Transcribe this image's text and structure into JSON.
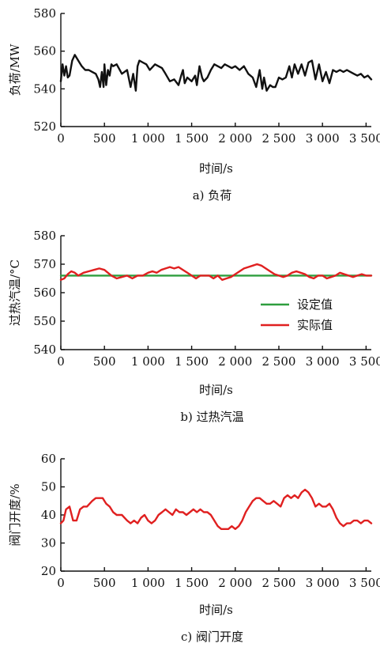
{
  "chart_data": [
    {
      "type": "line",
      "caption": "a) 负荷",
      "xlabel": "时间/s",
      "ylabel": "负荷/MW",
      "xlim": [
        0,
        3560
      ],
      "ylim": [
        520,
        580
      ],
      "xticks": [
        0,
        500,
        1000,
        1500,
        2000,
        2500,
        3000,
        3500
      ],
      "xtick_labels": [
        "0",
        "500",
        "1 000",
        "1 500",
        "2 000",
        "2 500",
        "3 000",
        "3 500"
      ],
      "yticks": [
        520,
        540,
        560,
        580
      ],
      "ytick_labels": [
        "520",
        "540",
        "560",
        "580"
      ],
      "series": [
        {
          "color": "#111111",
          "x": [
            0,
            20,
            40,
            60,
            80,
            100,
            130,
            160,
            200,
            240,
            280,
            320,
            360,
            400,
            430,
            450,
            470,
            490,
            500,
            520,
            540,
            560,
            580,
            600,
            640,
            700,
            760,
            800,
            830,
            860,
            880,
            900,
            940,
            980,
            1020,
            1080,
            1120,
            1160,
            1200,
            1250,
            1300,
            1350,
            1380,
            1400,
            1420,
            1450,
            1500,
            1540,
            1560,
            1590,
            1620,
            1640,
            1680,
            1720,
            1760,
            1800,
            1840,
            1880,
            1920,
            1960,
            2000,
            2050,
            2100,
            2150,
            2200,
            2240,
            2280,
            2310,
            2330,
            2360,
            2400,
            2430,
            2460,
            2500,
            2540,
            2580,
            2620,
            2650,
            2680,
            2720,
            2760,
            2800,
            2840,
            2880,
            2920,
            2960,
            3000,
            3040,
            3080,
            3120,
            3160,
            3200,
            3240,
            3280,
            3320,
            3360,
            3400,
            3440,
            3480,
            3520,
            3560
          ],
          "y": [
            544,
            553,
            547,
            552,
            546,
            547,
            555,
            558,
            555,
            552,
            550,
            550,
            549,
            548,
            545,
            541,
            549,
            541,
            553,
            542,
            550,
            547,
            553,
            552,
            553,
            548,
            550,
            541,
            548,
            539,
            552,
            555,
            554,
            553,
            550,
            553,
            552,
            551,
            548,
            544,
            545,
            542,
            547,
            550,
            543,
            546,
            544,
            547,
            542,
            552,
            546,
            544,
            546,
            550,
            553,
            552,
            551,
            553,
            552,
            551,
            552,
            550,
            552,
            548,
            546,
            541,
            550,
            540,
            546,
            539,
            542,
            541,
            541,
            546,
            545,
            546,
            552,
            546,
            553,
            548,
            553,
            547,
            554,
            555,
            545,
            553,
            544,
            549,
            543,
            550,
            549,
            550,
            549,
            550,
            549,
            548,
            547,
            548,
            546,
            547,
            545
          ]
        }
      ]
    },
    {
      "type": "line",
      "caption": "b) 过热汽温",
      "xlabel": "时间/s",
      "ylabel": "过热汽温/°C",
      "xlim": [
        0,
        3560
      ],
      "ylim": [
        540,
        580
      ],
      "xticks": [
        0,
        500,
        1000,
        1500,
        2000,
        2500,
        3000,
        3500
      ],
      "xtick_labels": [
        "0",
        "500",
        "1 000",
        "1 500",
        "2 000",
        "2 500",
        "3 000",
        "3 500"
      ],
      "yticks": [
        540,
        550,
        560,
        570,
        580
      ],
      "ytick_labels": [
        "540",
        "550",
        "560",
        "570",
        "580"
      ],
      "legend": [
        "设定值",
        "实际值"
      ],
      "series": [
        {
          "name": "设定值",
          "color": "#2e9e3e",
          "x": [
            0,
            3560
          ],
          "y": [
            566,
            566
          ]
        },
        {
          "name": "实际值",
          "color": "#e02020",
          "x": [
            0,
            40,
            80,
            120,
            160,
            200,
            260,
            320,
            380,
            440,
            500,
            540,
            580,
            640,
            700,
            760,
            820,
            880,
            940,
            1000,
            1050,
            1100,
            1150,
            1200,
            1250,
            1300,
            1350,
            1400,
            1450,
            1500,
            1550,
            1600,
            1650,
            1700,
            1750,
            1800,
            1850,
            1900,
            1950,
            2000,
            2050,
            2100,
            2150,
            2200,
            2250,
            2300,
            2350,
            2400,
            2450,
            2500,
            2550,
            2600,
            2650,
            2700,
            2750,
            2800,
            2850,
            2900,
            2950,
            3000,
            3050,
            3100,
            3150,
            3200,
            3250,
            3300,
            3350,
            3400,
            3450,
            3500,
            3560
          ],
          "y": [
            564.5,
            565,
            566.5,
            567.5,
            567,
            566,
            567,
            567.5,
            568,
            568.5,
            568,
            567,
            566,
            565,
            565.5,
            566,
            565,
            566,
            566,
            567,
            567.5,
            567,
            568,
            568.5,
            569,
            568.5,
            569,
            568,
            567,
            566,
            565,
            566,
            566,
            566,
            565,
            566,
            564.5,
            565,
            565.5,
            566.5,
            567.5,
            568.5,
            569,
            569.5,
            570,
            569.5,
            568.5,
            567.5,
            566.5,
            566,
            565.5,
            566,
            567,
            567.5,
            567,
            566.5,
            565.5,
            565,
            566,
            566,
            565,
            565.5,
            566,
            567,
            566.5,
            566,
            565.5,
            566,
            566.5,
            566,
            566
          ]
        }
      ]
    },
    {
      "type": "line",
      "caption": "c) 阀门开度",
      "xlabel": "时间/s",
      "ylabel": "阀门开度/%",
      "xlim": [
        0,
        3560
      ],
      "ylim": [
        20,
        60
      ],
      "xticks": [
        0,
        500,
        1000,
        1500,
        2000,
        2500,
        3000,
        3500
      ],
      "xtick_labels": [
        "0",
        "500",
        "1 000",
        "1 500",
        "2 000",
        "2 500",
        "3 000",
        "3 500"
      ],
      "yticks": [
        20,
        30,
        40,
        50,
        60
      ],
      "ytick_labels": [
        "20",
        "30",
        "40",
        "50",
        "60"
      ],
      "series": [
        {
          "color": "#e02020",
          "x": [
            0,
            30,
            60,
            100,
            140,
            180,
            220,
            260,
            300,
            360,
            400,
            440,
            480,
            520,
            560,
            600,
            640,
            700,
            760,
            800,
            840,
            880,
            920,
            960,
            1000,
            1040,
            1080,
            1120,
            1160,
            1200,
            1240,
            1280,
            1320,
            1360,
            1400,
            1440,
            1480,
            1520,
            1560,
            1600,
            1640,
            1680,
            1720,
            1760,
            1800,
            1840,
            1880,
            1920,
            1960,
            2000,
            2040,
            2080,
            2120,
            2160,
            2200,
            2240,
            2280,
            2320,
            2360,
            2400,
            2440,
            2480,
            2520,
            2560,
            2600,
            2640,
            2680,
            2720,
            2760,
            2800,
            2840,
            2880,
            2920,
            2960,
            3000,
            3040,
            3080,
            3120,
            3160,
            3200,
            3240,
            3280,
            3320,
            3360,
            3400,
            3440,
            3480,
            3520,
            3560
          ],
          "y": [
            37,
            38,
            42,
            43,
            38,
            38,
            42,
            43,
            43,
            45,
            46,
            46,
            46,
            44,
            43,
            41,
            40,
            40,
            38,
            37,
            38,
            37,
            39,
            40,
            38,
            37,
            38,
            40,
            41,
            42,
            41,
            40,
            42,
            41,
            41,
            40,
            41,
            42,
            41,
            42,
            41,
            41,
            40,
            38,
            36,
            35,
            35,
            35,
            36,
            35,
            36,
            38,
            41,
            43,
            45,
            46,
            46,
            45,
            44,
            44,
            45,
            44,
            43,
            46,
            47,
            46,
            47,
            46,
            48,
            49,
            48,
            46,
            43,
            44,
            43,
            43,
            44,
            42,
            39,
            37,
            36,
            37,
            37,
            38,
            38,
            37,
            38,
            38,
            37
          ]
        }
      ]
    }
  ]
}
